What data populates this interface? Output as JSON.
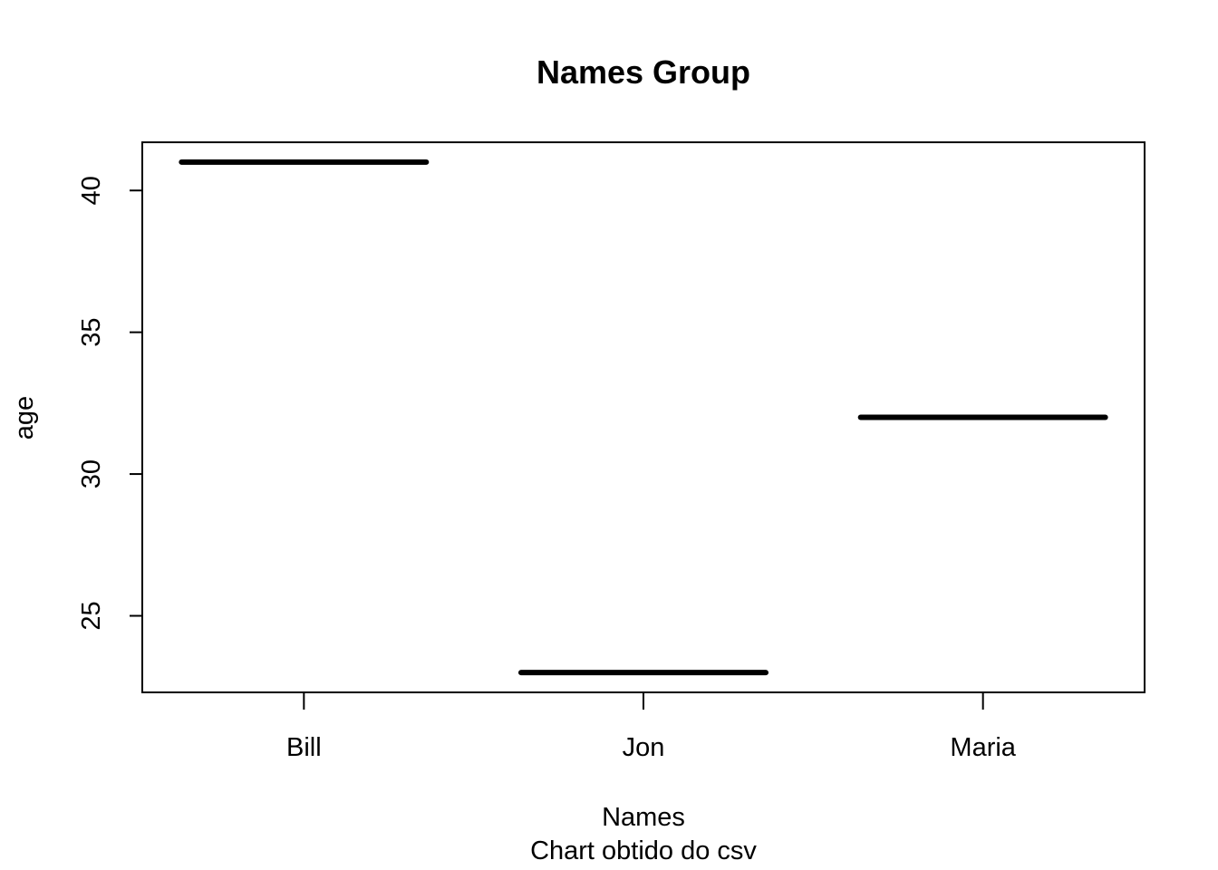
{
  "chart_data": {
    "type": "boxplot",
    "title": "Names Group",
    "xlabel": "Names",
    "subtitle": "Chart obtido do csv",
    "ylabel": "age",
    "categories": [
      "Bill",
      "Jon",
      "Maria"
    ],
    "values": [
      41,
      23,
      32
    ],
    "ylim": [
      22.3,
      41.7
    ],
    "yticks": [
      25,
      30,
      35,
      40
    ],
    "grid": false,
    "legend": "none",
    "colors": {
      "line": "#000000",
      "background": "#ffffff"
    }
  }
}
